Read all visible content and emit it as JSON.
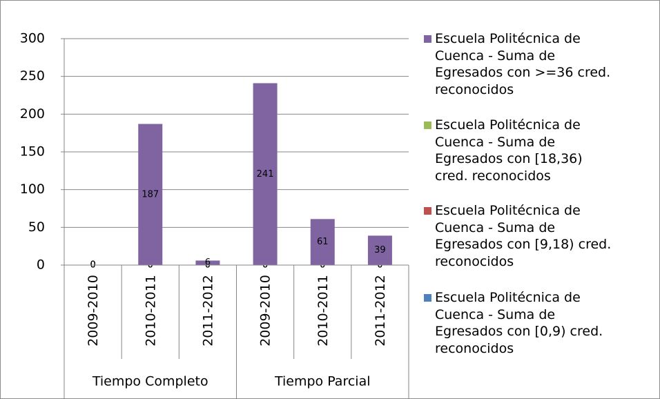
{
  "chart_data": {
    "type": "stacked-bar",
    "groups": [
      {
        "name": "Tiempo Completo",
        "categories": [
          "2009-2010",
          "2010-2011",
          "2011-2012"
        ]
      },
      {
        "name": "Tiempo Parcial",
        "categories": [
          "2009-2010",
          "2010-2011",
          "2011-2012"
        ]
      }
    ],
    "series": [
      {
        "name": "Escuela  Politécnica de Cuenca - Suma de Egresados con >=36 cred. reconocidos",
        "color": "#8064a2",
        "values": [
          0,
          187,
          6,
          241,
          61,
          39
        ]
      },
      {
        "name": "Escuela  Politécnica de Cuenca - Suma de Egresados con [18,36) cred. reconocidos",
        "color": "#9bbb59",
        "values": [
          0,
          0,
          0,
          0,
          0,
          0
        ]
      },
      {
        "name": "Escuela  Politécnica de Cuenca - Suma de Egresados con [9,18) cred. reconocidos",
        "color": "#c0504d",
        "values": [
          0,
          0,
          0,
          0,
          0,
          0
        ]
      },
      {
        "name": "Escuela  Politécnica de Cuenca - Suma de Egresados con [0,9) cred. reconocidos",
        "color": "#4f81bd",
        "values": [
          0,
          0,
          0,
          0,
          0,
          0
        ]
      }
    ],
    "ylim": [
      0,
      300
    ],
    "yticks": [
      0,
      50,
      100,
      150,
      200,
      250,
      300
    ],
    "grid": true,
    "legend": "right"
  }
}
